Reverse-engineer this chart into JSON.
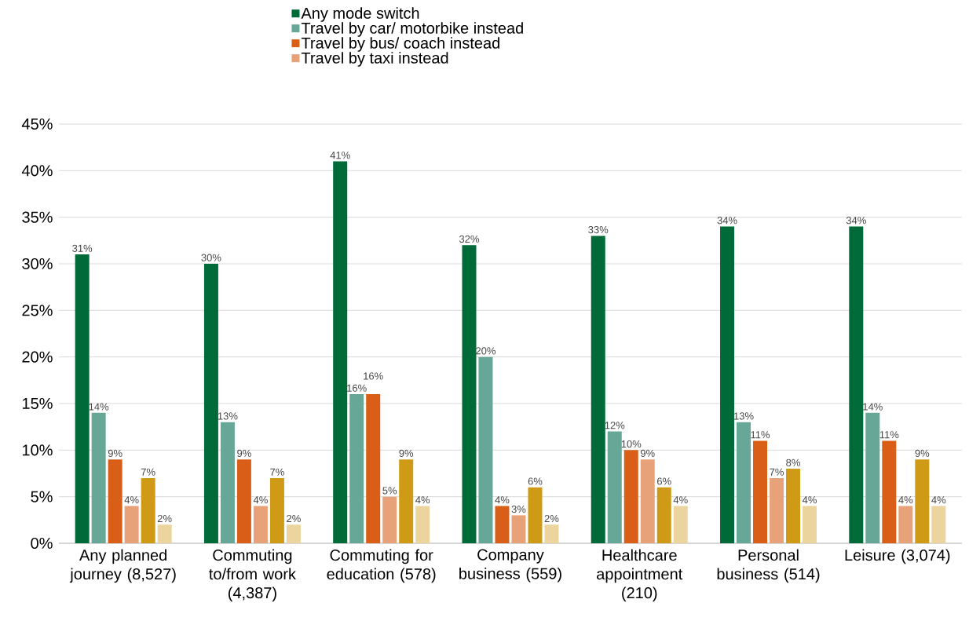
{
  "chart_data": {
    "type": "bar",
    "categories": [
      "Any planned journey (8,527)",
      "Commuting to/from work (4,387)",
      "Commuting for education (578)",
      "Company business (559)",
      "Healthcare appointment (210)",
      "Personal business (514)",
      "Leisure (3,074)"
    ],
    "series": [
      {
        "name": "Any mode switch",
        "color": "#006a38",
        "values": [
          31,
          30,
          41,
          32,
          33,
          34,
          34
        ],
        "value_labels": [
          "31%",
          "30%",
          "41%",
          "32%",
          "33%",
          "34%",
          "34%"
        ]
      },
      {
        "name": "Travel by car/ motorbike instead",
        "color": "#67a797",
        "values": [
          14,
          13,
          16,
          20,
          12,
          13,
          14
        ],
        "value_labels": [
          "14%",
          "13%",
          "16%",
          "20%",
          "12%",
          "13%",
          "14%"
        ]
      },
      {
        "name": "Travel by bus/ coach instead",
        "color": "#d95f18",
        "values": [
          9,
          9,
          16,
          4,
          10,
          11,
          11
        ],
        "value_labels": [
          "9%",
          "9%",
          "16%",
          "4%",
          "10%",
          "11%",
          "11%"
        ]
      },
      {
        "name": "Travel by taxi instead",
        "color": "#e8a27a",
        "values": [
          4,
          4,
          5,
          3,
          9,
          7,
          4
        ],
        "value_labels": [
          "4%",
          "4%",
          "5%",
          "3%",
          "9%",
          "7%",
          "4%"
        ]
      },
      {
        "color": "#cf9a16",
        "values": [
          7,
          7,
          9,
          6,
          6,
          8,
          9
        ],
        "value_labels": [
          "7%",
          "7%",
          "9%",
          "6%",
          "6%",
          "8%",
          "9%"
        ]
      },
      {
        "color": "#ecd49e",
        "values": [
          2,
          2,
          4,
          2,
          4,
          4,
          4
        ],
        "value_labels": [
          "2%",
          "2%",
          "4%",
          "2%",
          "4%",
          "4%",
          "4%"
        ]
      }
    ],
    "ylim": [
      0,
      45
    ],
    "yticks": [
      {
        "value": 0,
        "label": "0%"
      },
      {
        "value": 5,
        "label": "5%"
      },
      {
        "value": 10,
        "label": "10%"
      },
      {
        "value": 15,
        "label": "15%"
      },
      {
        "value": 20,
        "label": "20%"
      },
      {
        "value": 25,
        "label": "25%"
      },
      {
        "value": 30,
        "label": "30%"
      },
      {
        "value": 35,
        "label": "35%"
      },
      {
        "value": 40,
        "label": "40%"
      },
      {
        "value": 45,
        "label": "45%"
      }
    ],
    "grid": "y",
    "legend": "top"
  }
}
